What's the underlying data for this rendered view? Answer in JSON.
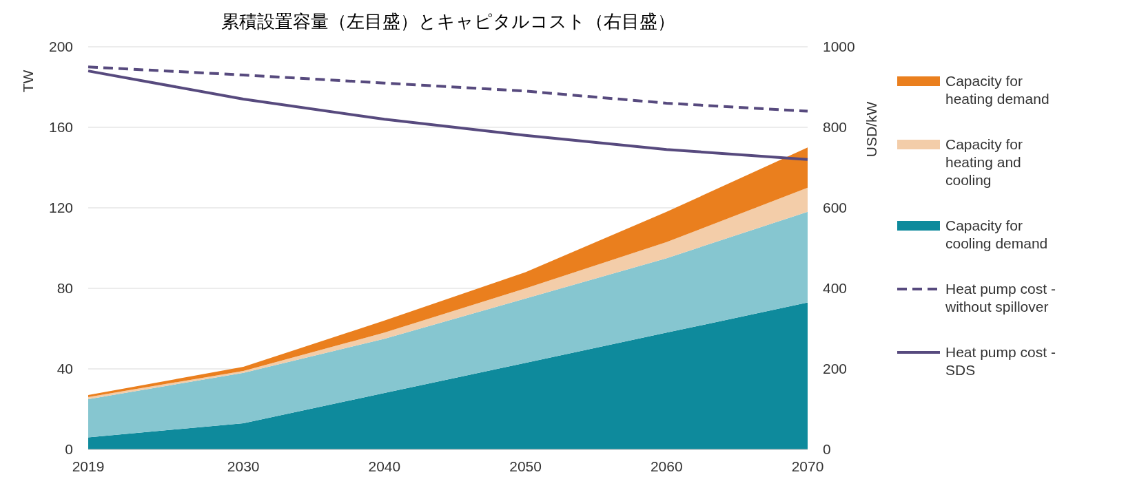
{
  "chart_data": {
    "type": "area",
    "title": "累積設置容量（左目盛）とキャピタルコスト（右目盛）",
    "ylabel": "TW",
    "y2label": "USD/kW",
    "stacked": true,
    "x": [
      2019,
      2030,
      2040,
      2050,
      2060,
      2070
    ],
    "xlim": [
      2019,
      2070
    ],
    "xticks": [
      2019,
      2030,
      2040,
      2050,
      2060,
      2070
    ],
    "ylim": [
      0,
      200
    ],
    "yticks": [
      0,
      40,
      80,
      120,
      160,
      200
    ],
    "y2lim": [
      0,
      1000
    ],
    "y2ticks": [
      0,
      200,
      400,
      600,
      800,
      1000
    ],
    "grid": "y",
    "legend": "right",
    "series": [
      {
        "name": "Capacity for cooling demand",
        "color": "#0e8a9c",
        "values": [
          6,
          13,
          28,
          43,
          58,
          73
        ]
      },
      {
        "color": "#86c6d0",
        "values": [
          19,
          25,
          27,
          32,
          37,
          45
        ]
      },
      {
        "name": "Capacity for heating and cooling",
        "color": "#f3cda9",
        "values": [
          1,
          1,
          3,
          5,
          8,
          12
        ]
      },
      {
        "name": "Capacity for heating demand",
        "color": "#ea7f1e",
        "values": [
          1,
          2,
          6,
          8,
          15,
          20
        ]
      },
      {
        "name": "Heat pump cost - without spillover",
        "type": "line",
        "axis": "y2",
        "line_style": "dashed",
        "color": "#574a7e",
        "values": [
          950,
          930,
          910,
          890,
          860,
          840
        ]
      },
      {
        "name": "Heat pump cost - SDS",
        "type": "line",
        "axis": "y2",
        "line_style": "solid",
        "color": "#574a7e",
        "values": [
          940,
          870,
          820,
          780,
          745,
          720
        ]
      }
    ]
  }
}
